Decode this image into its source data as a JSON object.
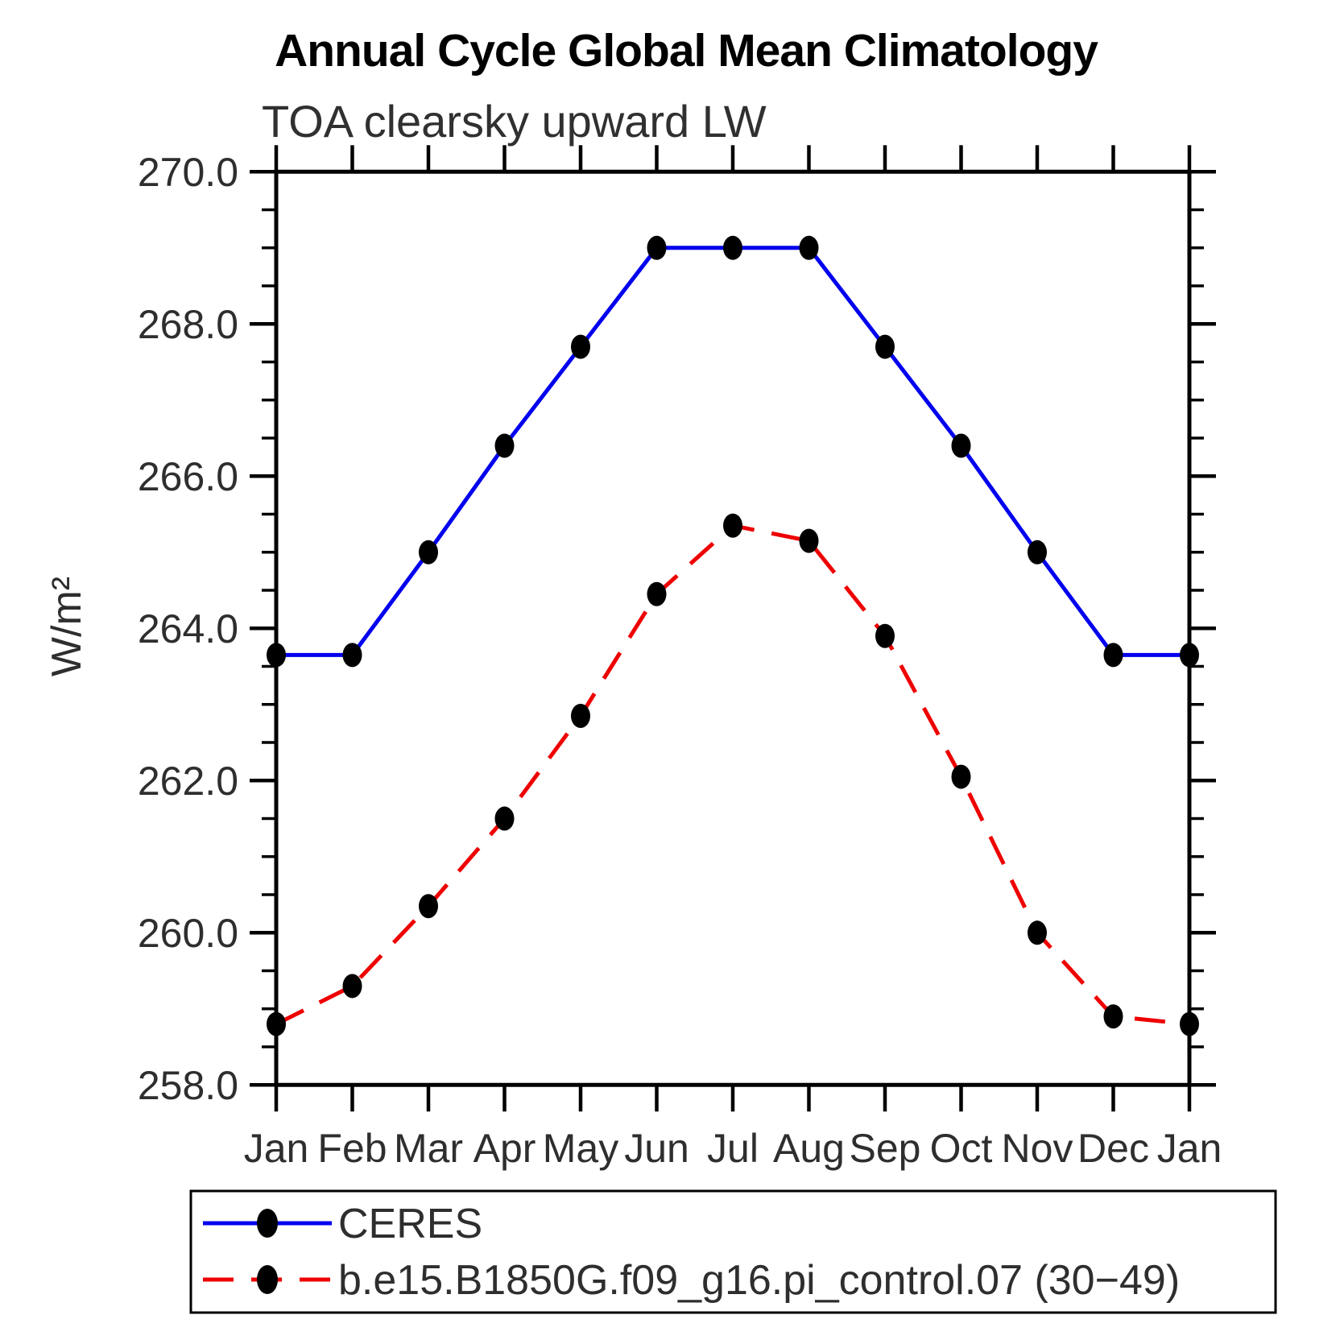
{
  "title": "Annual Cycle Global Mean Climatology",
  "subtitle": "TOA clearsky upward LW",
  "ylabel": "W/m²",
  "chart_data": {
    "type": "line",
    "categories": [
      "Jan",
      "Feb",
      "Mar",
      "Apr",
      "May",
      "Jun",
      "Jul",
      "Aug",
      "Sep",
      "Oct",
      "Nov",
      "Dec",
      "Jan"
    ],
    "series": [
      {
        "name": "CERES",
        "color": "#0000ee",
        "line_style": "solid",
        "marker": "black-filled-dot",
        "values": [
          263.65,
          263.65,
          265.0,
          266.4,
          267.7,
          269.0,
          269.0,
          269.0,
          267.7,
          266.4,
          265.0,
          263.65,
          263.65
        ]
      },
      {
        "name": "b.e15.B1850G.f09_g16.pi_control.07 (30−49)",
        "color": "#ee0000",
        "line_style": "dashed",
        "marker": "black-filled-dot",
        "values": [
          258.8,
          259.3,
          260.35,
          261.5,
          262.85,
          264.45,
          265.35,
          265.15,
          263.9,
          262.05,
          260.0,
          258.9,
          258.8
        ]
      }
    ],
    "ylim": [
      258.0,
      270.0
    ],
    "ytick_major_step": 2.0,
    "ytick_minor_step": 0.5,
    "ytick_values": [
      270.0,
      268.0,
      266.0,
      264.0,
      262.0,
      260.0,
      258.0
    ],
    "ytick_labels": [
      "270.0",
      "268.0",
      "266.0",
      "264.0",
      "262.0",
      "260.0",
      "258.0"
    ],
    "grid": false,
    "legend_position": "bottom-left-box",
    "axis_color": "#000000",
    "marker_color": "#000000"
  }
}
